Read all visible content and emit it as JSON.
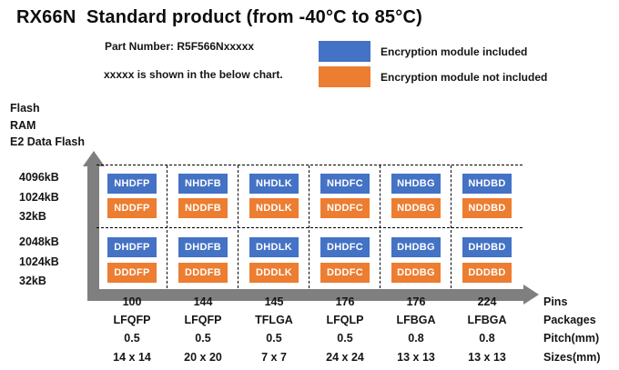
{
  "title": "RX66N  Standard product (from -40°C to 85°C)",
  "header": {
    "part_number": "Part Number: R5F566Nxxxxx",
    "note": "xxxxx is shown in the below chart."
  },
  "legend": {
    "included": {
      "label": "Encryption module included",
      "color": "#4472C4"
    },
    "not_included": {
      "label": "Encryption module not included",
      "color": "#ED7D31"
    }
  },
  "axis": {
    "row_titles": [
      "Flash",
      "RAM",
      "E2 Data Flash"
    ],
    "arrow_color": "#7f7f7f"
  },
  "matrix": {
    "groups": [
      {
        "flash": "4096kB",
        "ram": "1024kB",
        "e2": "32kB",
        "parts_included": [
          "NHDFP",
          "NHDFB",
          "NHDLK",
          "NHDFC",
          "NHDBG",
          "NHDBD"
        ],
        "parts_not_included": [
          "NDDFP",
          "NDDFB",
          "NDDLK",
          "NDDFC",
          "NDDBG",
          "NDDBD"
        ]
      },
      {
        "flash": "2048kB",
        "ram": "1024kB",
        "e2": "32kB",
        "parts_included": [
          "DHDFP",
          "DHDFB",
          "DHDLK",
          "DHDFC",
          "DHDBG",
          "DHDBD"
        ],
        "parts_not_included": [
          "DDDFP",
          "DDDFB",
          "DDDLK",
          "DDDFC",
          "DDDBG",
          "DDDBD"
        ]
      }
    ],
    "columns": [
      {
        "pins": "100",
        "package": "LFQFP",
        "pitch": "0.5",
        "size": "14 x 14"
      },
      {
        "pins": "144",
        "package": "LFQFP",
        "pitch": "0.5",
        "size": "20 x 20"
      },
      {
        "pins": "145",
        "package": "TFLGA",
        "pitch": "0.5",
        "size": "7 x 7"
      },
      {
        "pins": "176",
        "package": "LFQLP",
        "pitch": "0.5",
        "size": "24 x 24"
      },
      {
        "pins": "176",
        "package": "LFBGA",
        "pitch": "0.8",
        "size": "13 x 13"
      },
      {
        "pins": "224",
        "package": "LFBGA",
        "pitch": "0.8",
        "size": "13 x 13"
      }
    ]
  },
  "footer": {
    "row_labels": [
      "Pins",
      "Packages",
      "Pitch(mm)",
      "Sizes(mm)"
    ]
  }
}
